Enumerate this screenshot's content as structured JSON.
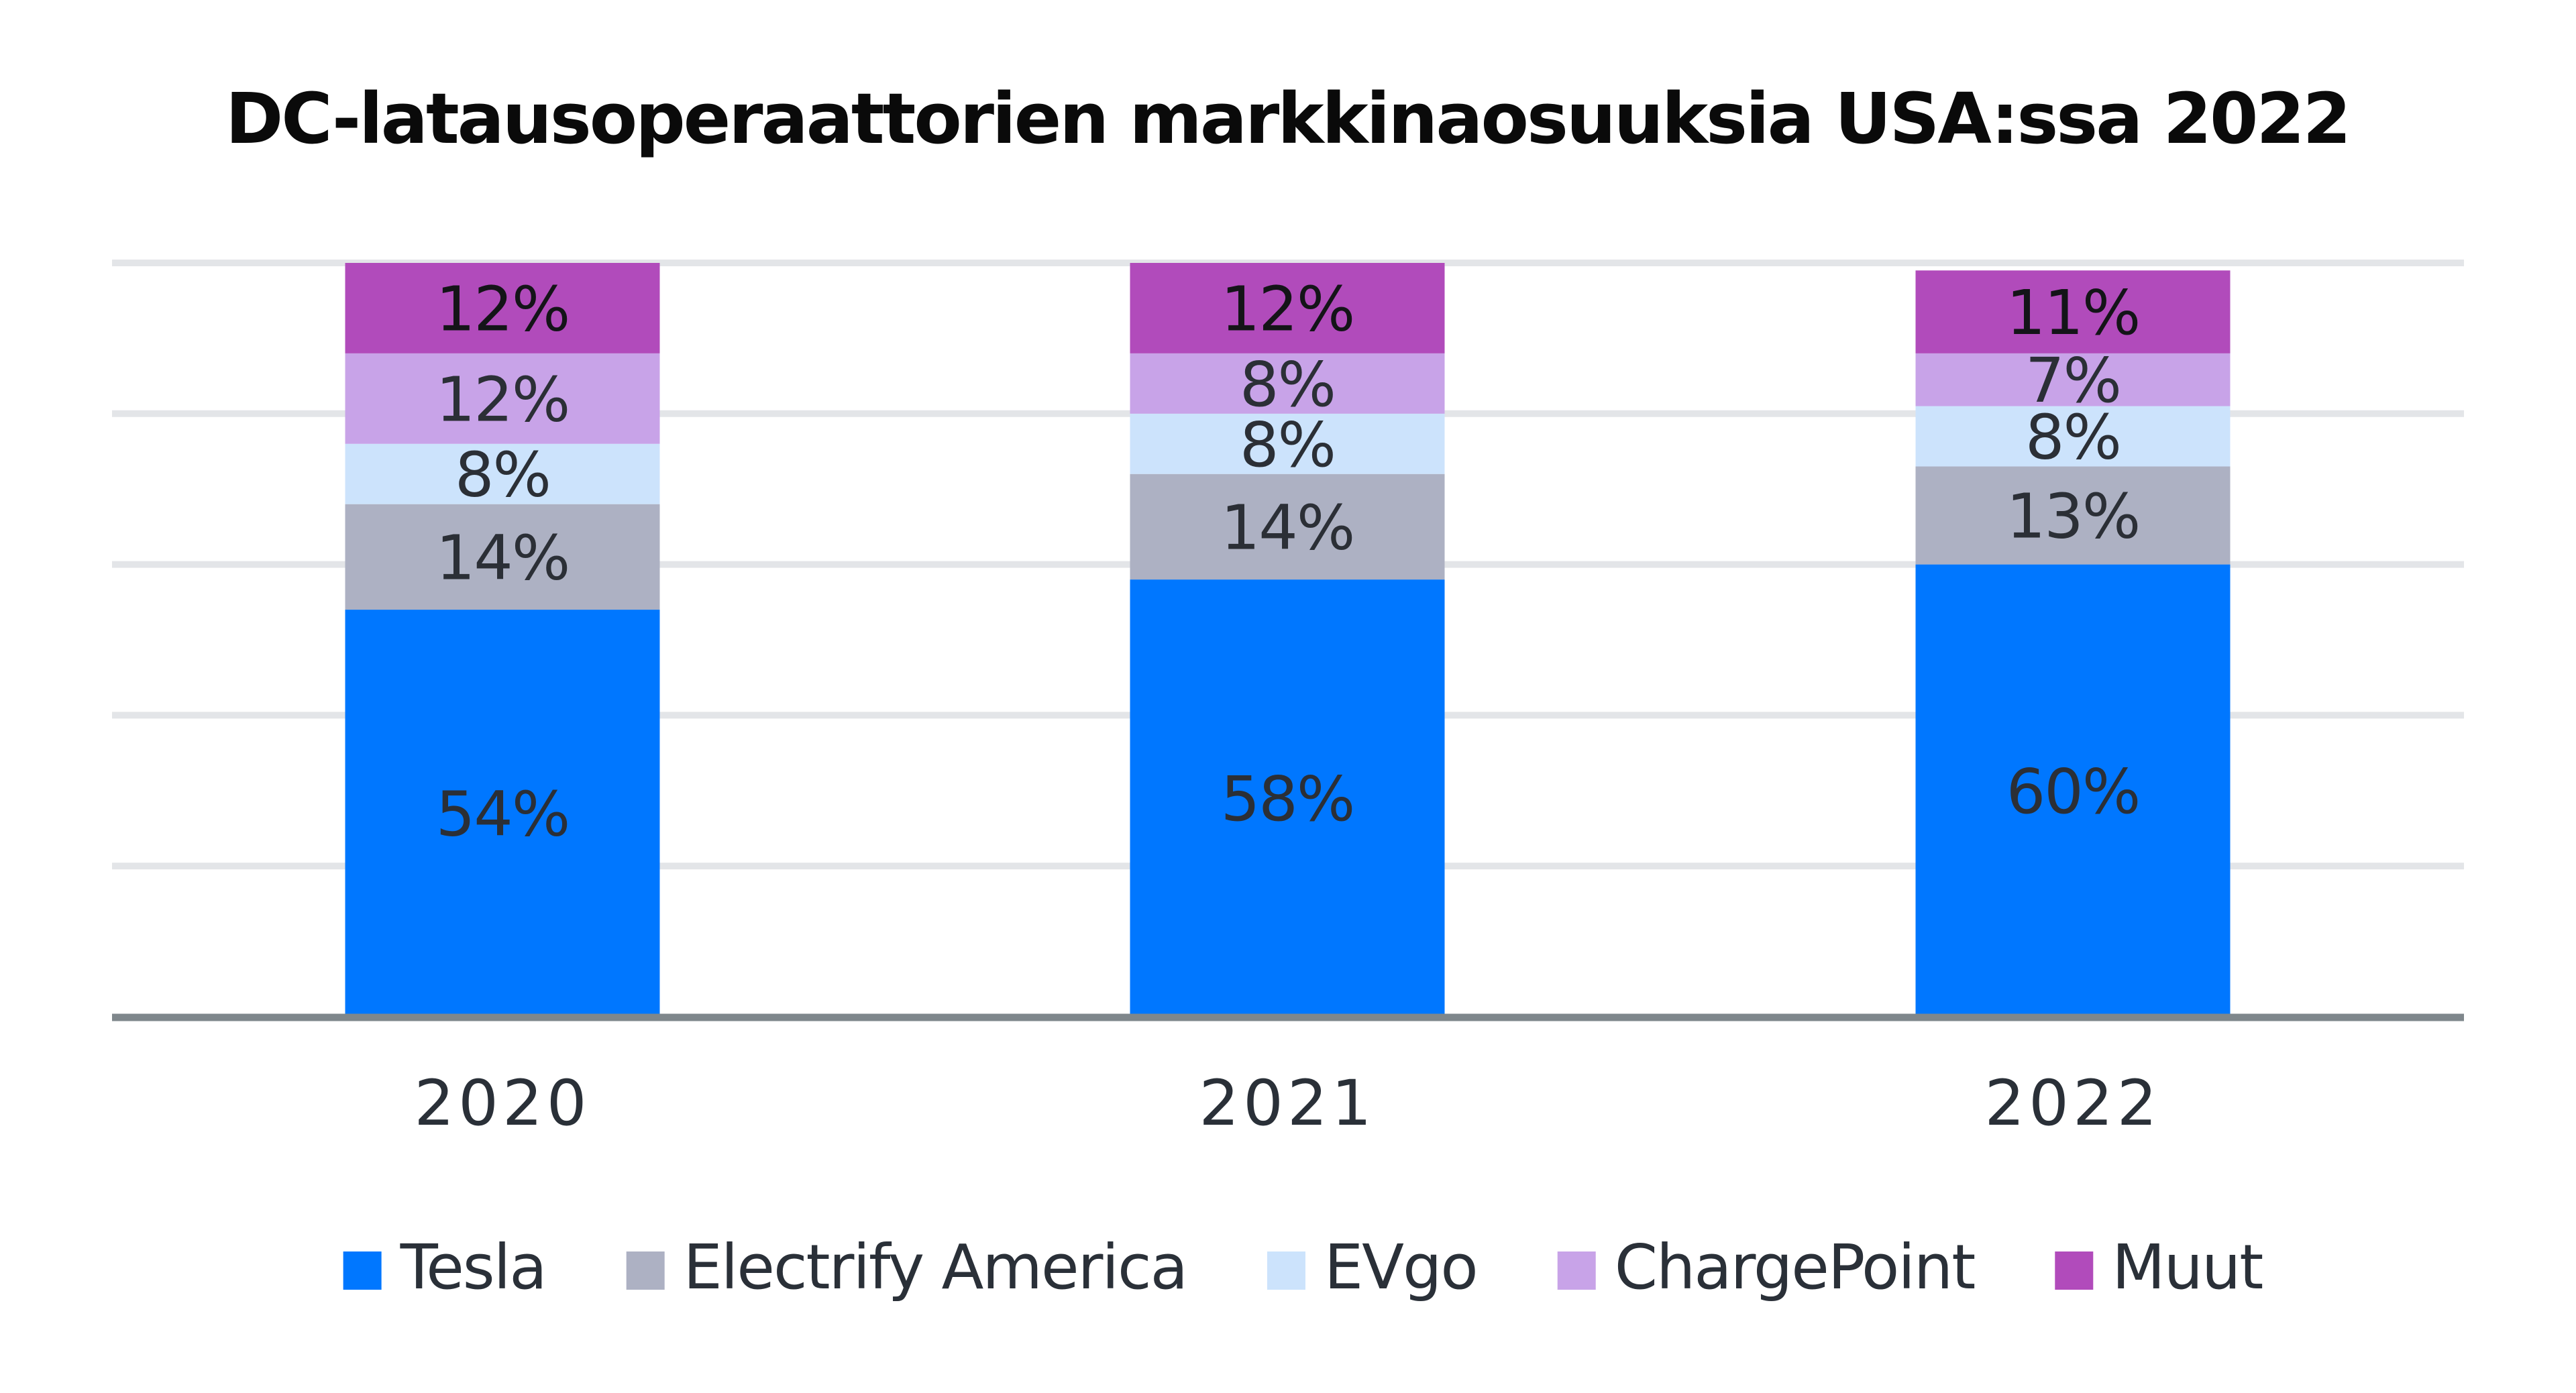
{
  "chart_data": {
    "type": "bar",
    "stacked": true,
    "title": "DC-latausoperaattorien markkinaosuuksia USA:ssa 2022",
    "xlabel": "",
    "ylabel": "",
    "ylim": [
      0,
      100
    ],
    "y_gridlines": [
      20,
      40,
      60,
      80,
      100
    ],
    "grid": true,
    "y_tick_labels_visible": false,
    "legend_position": "bottom-center",
    "value_suffix": "%",
    "categories": [
      "2020",
      "2021",
      "2022"
    ],
    "series": [
      {
        "name": "Tesla",
        "color": "#0077ff",
        "values": [
          54,
          58,
          60
        ],
        "labels": [
          "54%",
          "58%",
          "60%"
        ]
      },
      {
        "name": "Electrify America",
        "color": "#adb1c3",
        "values": [
          14,
          14,
          13
        ],
        "labels": [
          "14%",
          "14%",
          "13%"
        ]
      },
      {
        "name": "EVgo",
        "color": "#cce3fc",
        "values": [
          8,
          8,
          8
        ],
        "labels": [
          "8%",
          "8%",
          "8%"
        ]
      },
      {
        "name": "ChargePoint",
        "color": "#c8a3e8",
        "values": [
          12,
          8,
          7
        ],
        "labels": [
          "12%",
          "8%",
          "7%"
        ]
      },
      {
        "name": "Muut",
        "color": "#b14bbb",
        "values": [
          12,
          12,
          11
        ],
        "labels": [
          "12%",
          "12%",
          "11%"
        ]
      }
    ]
  }
}
